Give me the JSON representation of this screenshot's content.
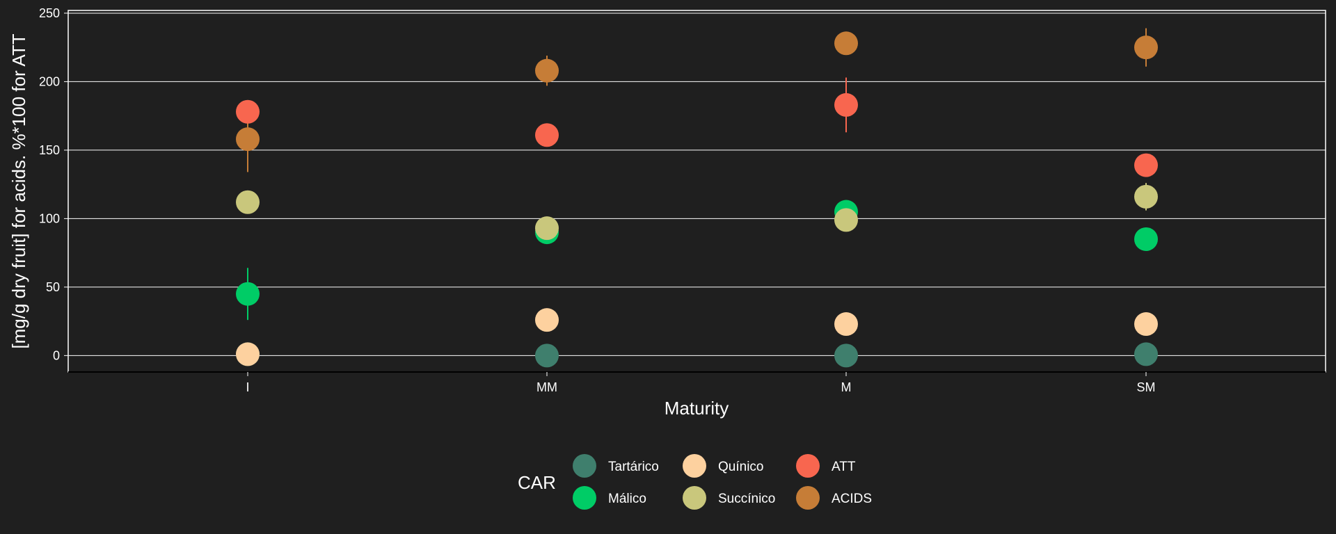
{
  "chart_data": {
    "type": "scatter",
    "xlabel": "Maturity",
    "ylabel": "[mg/g dry fruit] for acids. %*100 for ATT",
    "categories": [
      "I",
      "MM",
      "M",
      "SM"
    ],
    "ylim": [
      -12,
      252
    ],
    "yticks": [
      0,
      50,
      100,
      150,
      200,
      250
    ],
    "grid": "horizontal",
    "legend_title": "CAR",
    "legend_position": "bottom",
    "series": [
      {
        "name": "Tartárico",
        "color": "#3f7f6d",
        "values": [
          1,
          0,
          0,
          1
        ],
        "errors": [
          0,
          0,
          0,
          0
        ]
      },
      {
        "name": "Málico",
        "color": "#00cc66",
        "values": [
          45,
          90,
          105,
          85
        ],
        "errors": [
          19,
          3,
          5,
          3
        ]
      },
      {
        "name": "Quínico",
        "color": "#fdd19f",
        "values": [
          1,
          26,
          23,
          23
        ],
        "errors": [
          0,
          3,
          2,
          2
        ]
      },
      {
        "name": "Succínico",
        "color": "#c9c77c",
        "values": [
          112,
          93,
          99,
          116
        ],
        "errors": [
          3,
          4,
          3,
          10
        ]
      },
      {
        "name": "ATT",
        "color": "#f8664f",
        "values": [
          178,
          161,
          183,
          139
        ],
        "errors": [
          3,
          3,
          20,
          3
        ]
      },
      {
        "name": "ACIDS",
        "color": "#c67d37",
        "values": [
          158,
          208,
          228,
          225
        ],
        "errors": [
          24,
          11,
          3,
          14
        ]
      }
    ]
  }
}
